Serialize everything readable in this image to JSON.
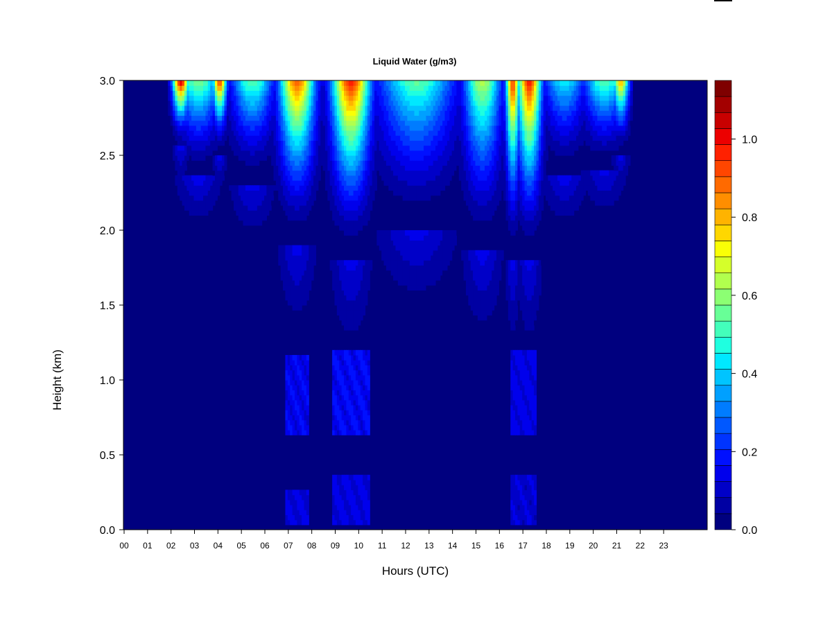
{
  "chart_data": {
    "type": "heatmap",
    "title": "Liquid Water (g/m3)",
    "xlabel": "Hours (UTC)",
    "ylabel": "Height (km)",
    "xlim": [
      0,
      24
    ],
    "ylim": [
      0,
      3.0
    ],
    "x_ticks": [
      "00",
      "01",
      "02",
      "03",
      "04",
      "05",
      "06",
      "07",
      "08",
      "09",
      "10",
      "11",
      "12",
      "13",
      "14",
      "15",
      "16",
      "17",
      "18",
      "19",
      "20",
      "21",
      "22",
      "23"
    ],
    "y_ticks": [
      "0.0",
      "0.5",
      "1.0",
      "1.5",
      "2.0",
      "2.5",
      "3.0"
    ],
    "colorbar": {
      "range": [
        0.0,
        1.15
      ],
      "ticks": [
        "0.0",
        "0.2",
        "0.4",
        "0.6",
        "0.8",
        "1.0"
      ],
      "colors": [
        "#00007F",
        "#0000A3",
        "#0000C8",
        "#0000EC",
        "#0010FF",
        "#0034FF",
        "#0058FF",
        "#007CFF",
        "#00A0FF",
        "#00C4FF",
        "#00E8FF",
        "#1FFFE0",
        "#43FFBB",
        "#68FF97",
        "#8CFF73",
        "#B1FF4E",
        "#D5FF2A",
        "#FAFF06",
        "#FFD700",
        "#FFB300",
        "#FF8E00",
        "#FF6A00",
        "#FF4600",
        "#FF2100",
        "#EC0000",
        "#C80000",
        "#A30000",
        "#7F0000"
      ]
    },
    "cloud_episodes": [
      {
        "center_hour": 2.45,
        "width_hours": 0.35,
        "top_peak": 1.05,
        "base_km": 2.55
      },
      {
        "center_hour": 4.1,
        "width_hours": 0.3,
        "top_peak": 0.95,
        "base_km": 2.5
      },
      {
        "center_hour": 3.2,
        "width_hours": 0.9,
        "top_peak": 0.6,
        "base_km": 2.35
      },
      {
        "center_hour": 5.5,
        "width_hours": 0.9,
        "top_peak": 0.55,
        "base_km": 2.3
      },
      {
        "center_hour": 7.4,
        "width_hours": 0.75,
        "top_peak": 0.9,
        "base_km": 1.9
      },
      {
        "center_hour": 9.7,
        "width_hours": 0.8,
        "top_peak": 1.0,
        "base_km": 1.8
      },
      {
        "center_hour": 12.5,
        "width_hours": 1.6,
        "top_peak": 0.55,
        "base_km": 2.0
      },
      {
        "center_hour": 15.3,
        "width_hours": 0.8,
        "top_peak": 0.65,
        "base_km": 1.85
      },
      {
        "center_hour": 16.6,
        "width_hours": 0.3,
        "top_peak": 0.95,
        "base_km": 1.8
      },
      {
        "center_hour": 17.3,
        "width_hours": 0.5,
        "top_peak": 1.0,
        "base_km": 1.8
      },
      {
        "center_hour": 18.8,
        "width_hours": 0.9,
        "top_peak": 0.45,
        "base_km": 2.35
      },
      {
        "center_hour": 20.5,
        "width_hours": 0.9,
        "top_peak": 0.55,
        "base_km": 2.4
      },
      {
        "center_hour": 21.2,
        "width_hours": 0.35,
        "top_peak": 0.8,
        "base_km": 2.5
      }
    ],
    "low_level_patches": [
      {
        "hour_start": 6.9,
        "hour_end": 7.9,
        "km_low": 0.65,
        "km_high": 1.15,
        "value": 0.17
      },
      {
        "hour_start": 8.9,
        "hour_end": 10.5,
        "km_low": 0.65,
        "km_high": 1.2,
        "value": 0.18
      },
      {
        "hour_start": 16.5,
        "hour_end": 17.6,
        "km_low": 0.65,
        "km_high": 1.2,
        "value": 0.16
      },
      {
        "hour_start": 6.9,
        "hour_end": 7.9,
        "km_low": 0.05,
        "km_high": 0.25,
        "value": 0.14
      },
      {
        "hour_start": 8.9,
        "hour_end": 10.5,
        "km_low": 0.05,
        "km_high": 0.38,
        "value": 0.15
      },
      {
        "hour_start": 16.5,
        "hour_end": 17.6,
        "km_low": 0.05,
        "km_high": 0.38,
        "value": 0.13
      }
    ]
  }
}
